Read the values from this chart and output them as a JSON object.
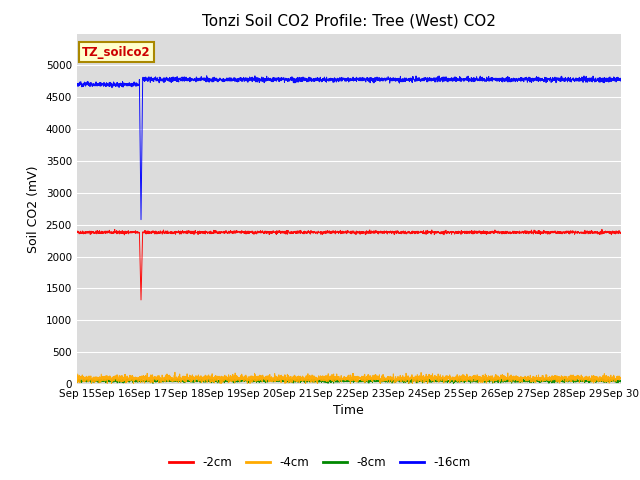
{
  "title": "Tonzi Soil CO2 Profile: Tree (West) CO2",
  "ylabel": "Soil CO2 (mV)",
  "xlabel": "Time",
  "legend_label": "TZ_soilco2",
  "ylim": [
    0,
    5500
  ],
  "yticks": [
    0,
    500,
    1000,
    1500,
    2000,
    2500,
    3000,
    3500,
    4000,
    4500,
    5000
  ],
  "bg_color": "#dcdcdc",
  "series": {
    "-2cm": {
      "color": "#ff0000"
    },
    "-4cm": {
      "color": "#ffaa00"
    },
    "-8cm": {
      "color": "#008800"
    },
    "-16cm": {
      "color": "#0000ff"
    }
  },
  "x_tick_labels": [
    "Sep 15",
    "Sep 16",
    "Sep 17",
    "Sep 18",
    "Sep 19",
    "Sep 20",
    "Sep 21",
    "Sep 22",
    "Sep 23",
    "Sep 24",
    "Sep 25",
    "Sep 26",
    "Sep 27",
    "Sep 28",
    "Sep 29",
    "Sep 30"
  ],
  "n_points": 3000,
  "title_fontsize": 11,
  "axis_label_fontsize": 9,
  "tick_fontsize": 7.5,
  "legend_fontsize": 8.5
}
